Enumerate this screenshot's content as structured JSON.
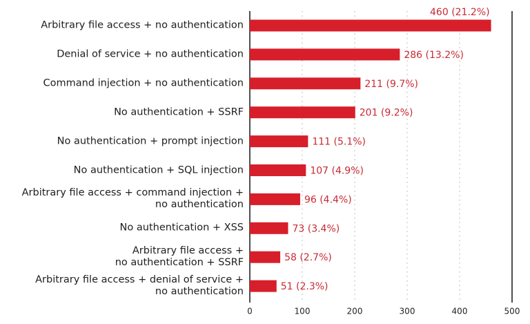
{
  "chart_data": {
    "type": "bar",
    "orientation": "horizontal",
    "categories": [
      "Arbitrary file access + no authentication",
      "Denial of service + no authentication",
      "Command injection + no authentication",
      "No authentication + SSRF",
      "No authentication + prompt injection",
      "No authentication + SQL injection",
      "Arbitrary file access + command injection +\nno authentication",
      "No authentication + XSS",
      "Arbitrary file access +\nno authentication + SSRF",
      "Arbitrary file access + denial of service +\nno authentication"
    ],
    "values": [
      460,
      286,
      211,
      201,
      111,
      107,
      96,
      73,
      58,
      51
    ],
    "value_labels": [
      "460 (21.2%)",
      "286 (13.2%)",
      "211 (9.7%)",
      "201 (9.2%)",
      "111 (5.1%)",
      "107 (4.9%)",
      "96 (4.4%)",
      "73 (3.4%)",
      "58 (2.7%)",
      "51 (2.3%)"
    ],
    "color": "#d71f2b",
    "label_color": "#c92a34",
    "xlim": [
      0,
      500
    ],
    "xticks": [
      0,
      100,
      200,
      300,
      400,
      500
    ],
    "grid": true
  }
}
